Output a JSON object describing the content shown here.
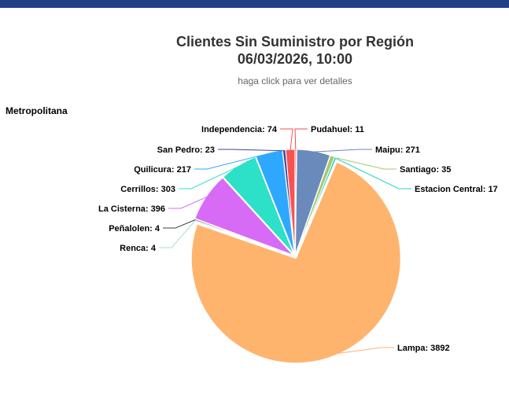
{
  "title_line1": "Clientes Sin Suministro por Región",
  "title_line2": "06/03/2026, 10:00",
  "subtitle": "haga click para ver detalles",
  "region": "Metropolitana",
  "chart_data": {
    "type": "pie",
    "title": "Clientes Sin Suministro por Región 06/03/2026, 10:00",
    "subtitle": "haga click para ver detalles",
    "series_name": "Metropolitana",
    "slices": [
      {
        "name": "Pudahuel",
        "value": 11,
        "color": "#f04e46"
      },
      {
        "name": "Maipu",
        "value": 271,
        "color": "#6b8abc"
      },
      {
        "name": "Santiago",
        "value": 35,
        "color": "#a6c96a"
      },
      {
        "name": "Estacion Central",
        "value": 17,
        "color": "#2bd1c1"
      },
      {
        "name": "Lampa",
        "value": 3892,
        "color": "#ffb46e"
      },
      {
        "name": "Renca",
        "value": 4,
        "color": "#a6e2d6"
      },
      {
        "name": "Peñalolen",
        "value": 4,
        "color": "#434348"
      },
      {
        "name": "La Cisterna",
        "value": 396,
        "color": "#d76bf5"
      },
      {
        "name": "Cerrillos",
        "value": 303,
        "color": "#2de0c8"
      },
      {
        "name": "Quilicura",
        "value": 217,
        "color": "#2ea8ff"
      },
      {
        "name": "San Pedro",
        "value": 23,
        "color": "#434398"
      },
      {
        "name": "Independencia",
        "value": 74,
        "color": "#f85252"
      }
    ]
  }
}
